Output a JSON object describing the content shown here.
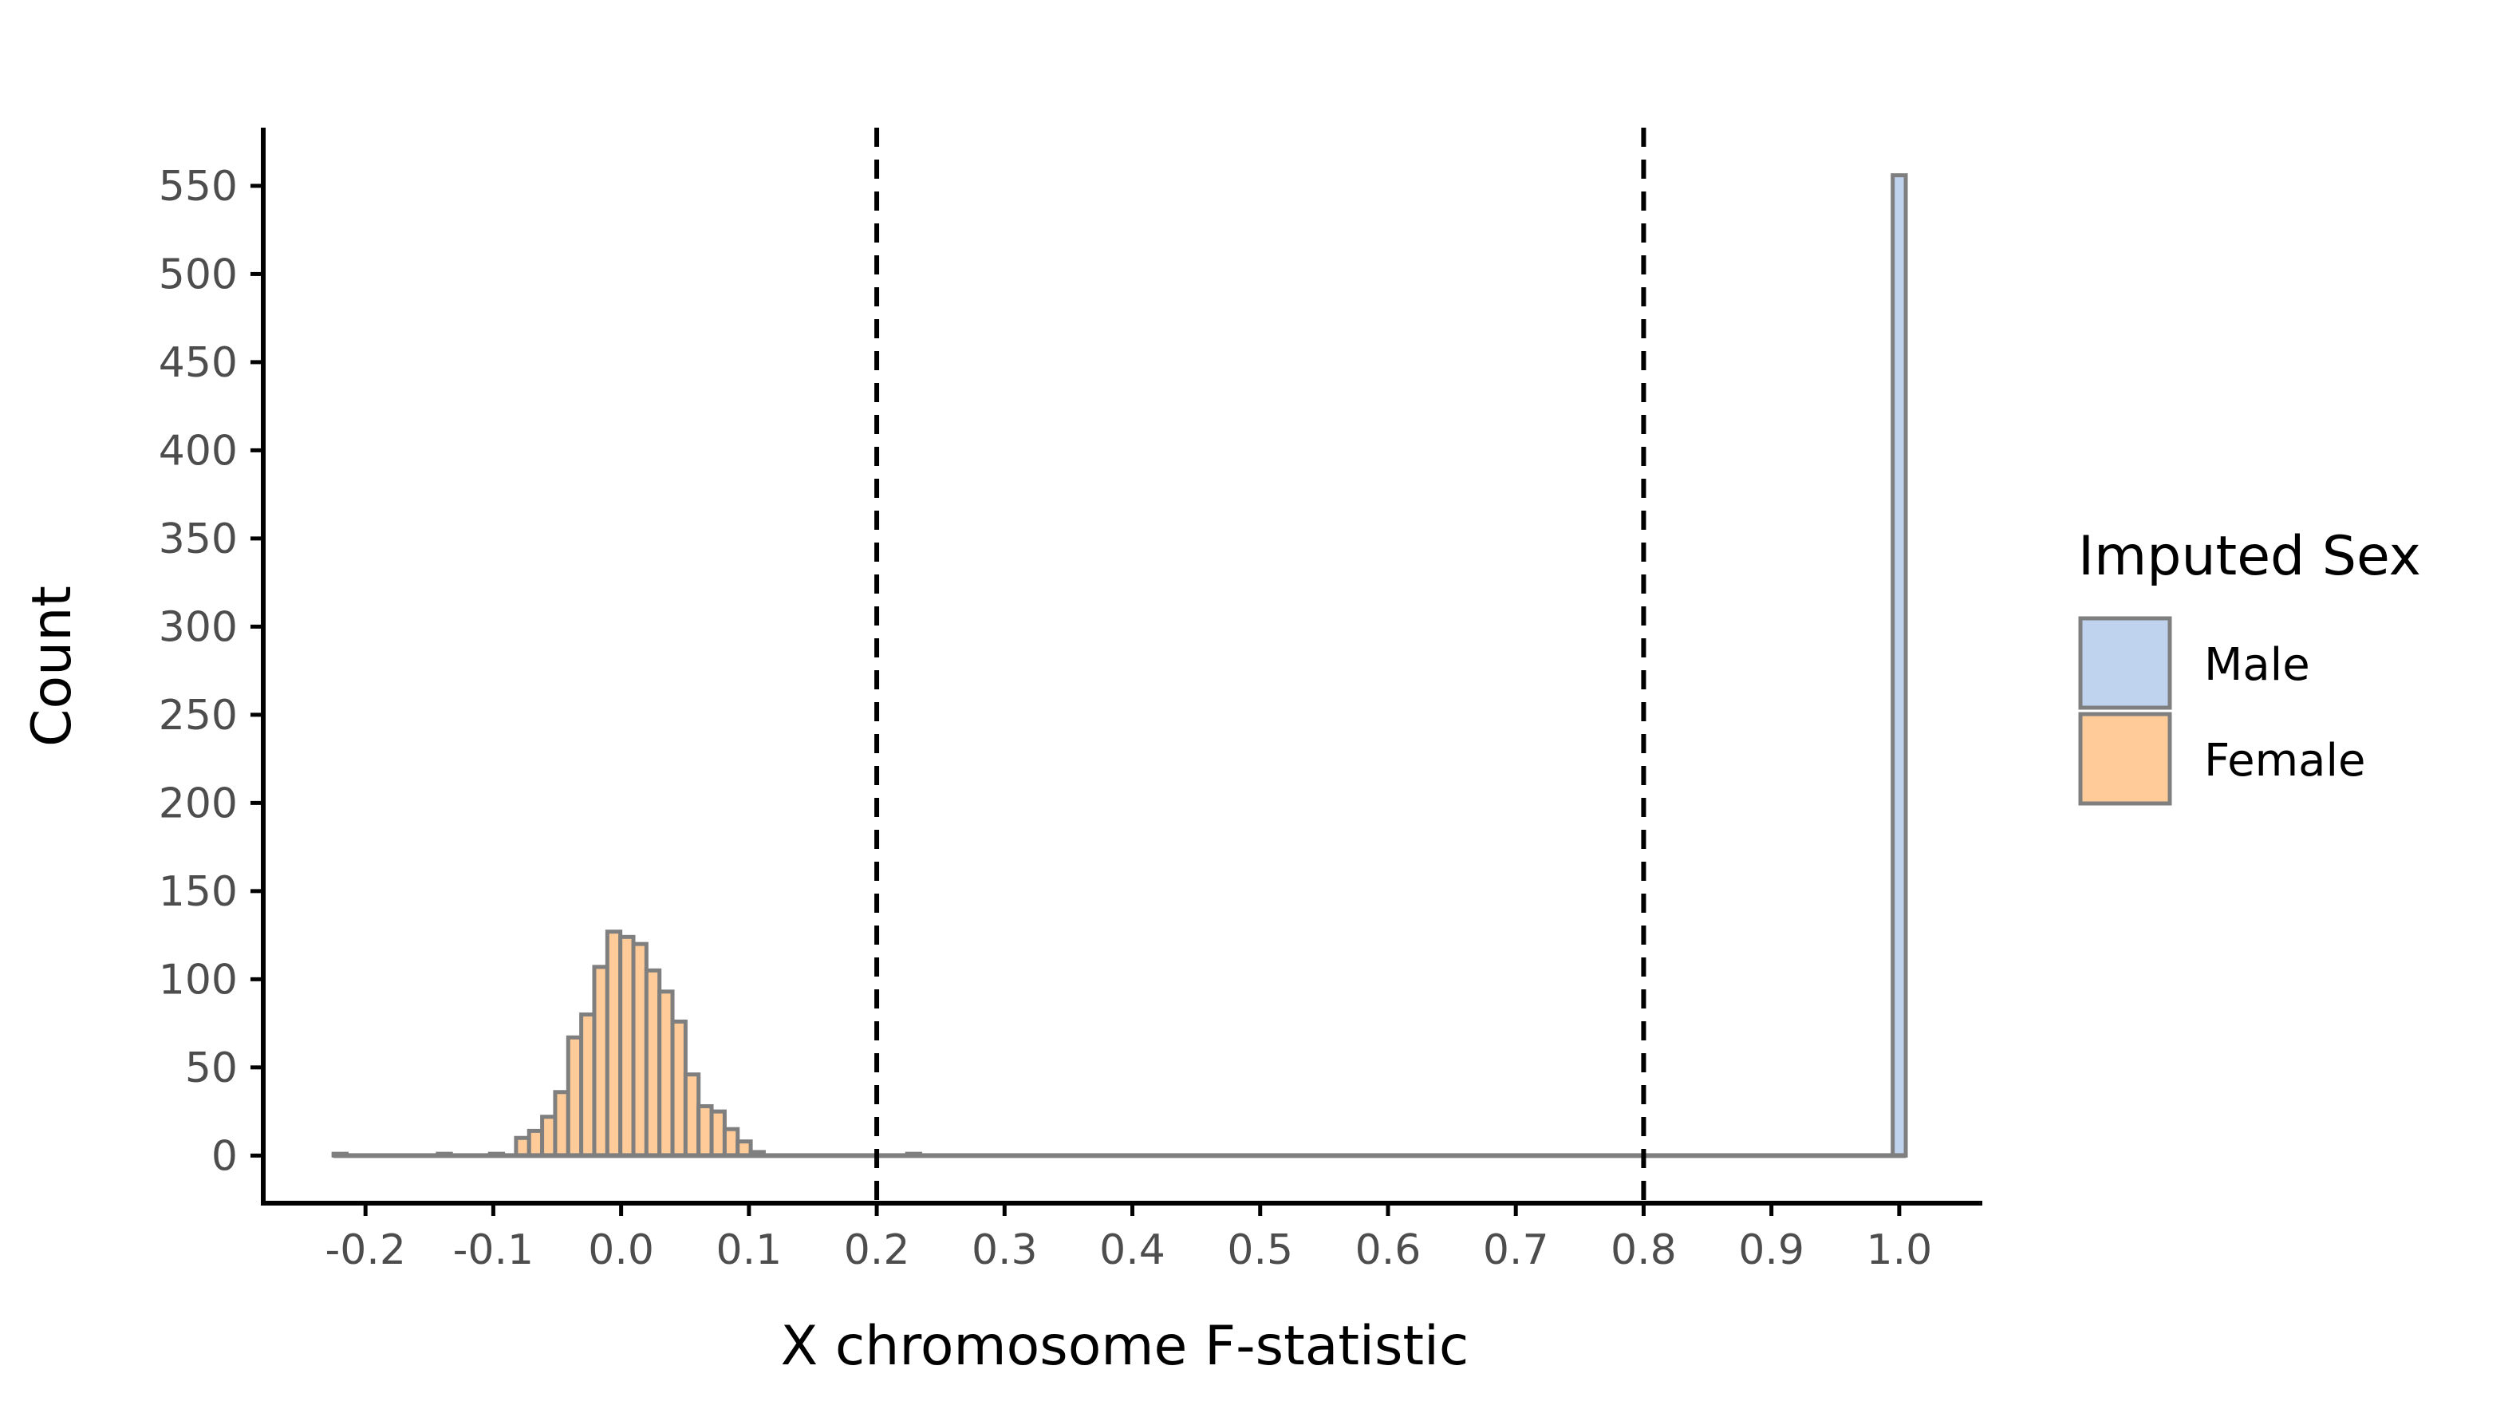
{
  "chart_data": {
    "type": "bar",
    "subtype": "histogram",
    "xlabel": "X chromosome F-statistic",
    "ylabel": "Count",
    "xlim": [
      -0.28,
      1.065
    ],
    "ylim": [
      -27,
      583
    ],
    "x_ticks": [
      -0.2,
      -0.1,
      0.0,
      0.1,
      0.2,
      0.3,
      0.4,
      0.5,
      0.6,
      0.7,
      0.8,
      0.9,
      1.0
    ],
    "x_tick_labels": [
      "-0.2",
      "-0.1",
      "0.0",
      "0.1",
      "0.2",
      "0.3",
      "0.4",
      "0.5",
      "0.6",
      "0.7",
      "0.8",
      "0.9",
      "1.0"
    ],
    "y_ticks": [
      0,
      50,
      100,
      150,
      200,
      250,
      300,
      350,
      400,
      450,
      500,
      550
    ],
    "y_tick_labels": [
      "0",
      "50",
      "100",
      "150",
      "200",
      "250",
      "300",
      "350",
      "400",
      "450",
      "500",
      "550"
    ],
    "bin_start": -0.225,
    "bin_width": 0.0102,
    "vlines": [
      0.2,
      0.8
    ],
    "grid": false,
    "legend": {
      "title": "Imputed Sex",
      "placement": "right"
    },
    "colors": {
      "Male": "#bfd2ee",
      "Female": "#ffcc99",
      "outline": "#7f7f7f",
      "axis": "#000000"
    },
    "series": [
      {
        "name": "Female",
        "counts": [
          1,
          0,
          0,
          0,
          0,
          0,
          0,
          0,
          1,
          0,
          0,
          0,
          1,
          0,
          10,
          14,
          22,
          36,
          67,
          80,
          107,
          127,
          124,
          120,
          105,
          93,
          76,
          46,
          28,
          25,
          15,
          8,
          2,
          0,
          0,
          0,
          0,
          0,
          0,
          0,
          0,
          0,
          0,
          0,
          1
        ]
      },
      {
        "name": "Male",
        "bins": [
          {
            "x": 1.0,
            "count": 556
          }
        ]
      }
    ]
  }
}
